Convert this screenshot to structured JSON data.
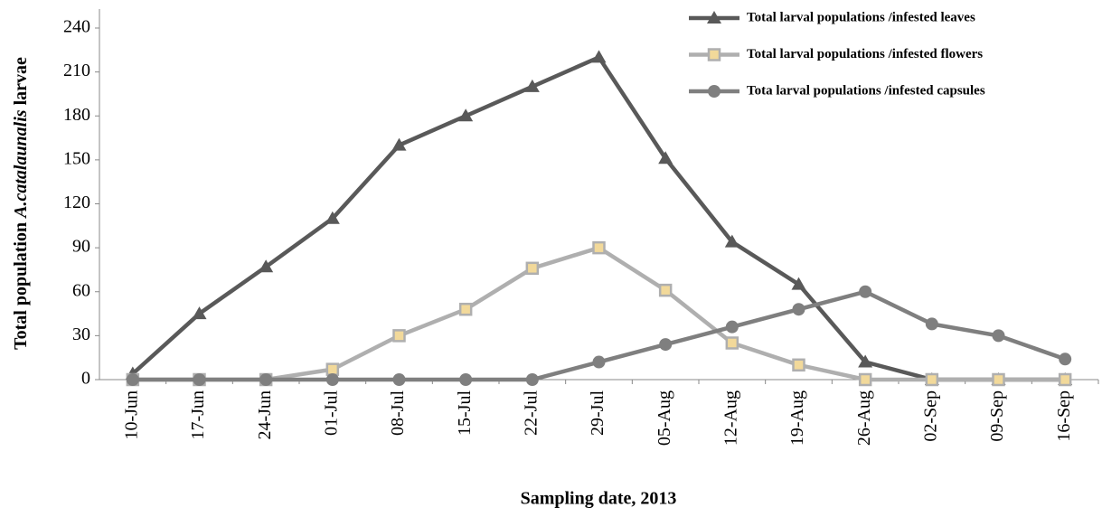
{
  "chart_data": {
    "type": "line",
    "xlabel": "Sampling date, 2013",
    "ylabel_parts": [
      "Total  population  ",
      "A.catalaunalis",
      " larvae"
    ],
    "categories": [
      "10-Jun",
      "17-Jun",
      "24-Jun",
      "01-Jul",
      "08-Jul",
      "15-Jul",
      "22-Jul",
      "29-Jul",
      "05-Aug",
      "12-Aug",
      "19-Aug",
      "26-Aug",
      "02-Sep",
      "09-Sep",
      "16-Sep"
    ],
    "series": [
      {
        "name": "Total larval populations /infested leaves",
        "color": "#595959",
        "marker": "triangle",
        "marker_fill": "#595959",
        "values": [
          4,
          45,
          77,
          110,
          160,
          180,
          200,
          220,
          151,
          94,
          65,
          12,
          0,
          0,
          0
        ]
      },
      {
        "name": "Total larval populations /infested flowers",
        "color": "#afafaf",
        "marker": "square",
        "marker_fill": "#f2d99a",
        "values": [
          0,
          0,
          0,
          7,
          30,
          48,
          76,
          90,
          61,
          25,
          10,
          0,
          0,
          0,
          0
        ]
      },
      {
        "name": "Tota larval populations /infested capsules",
        "color": "#7f7f7f",
        "marker": "circle",
        "marker_fill": "#7f7f7f",
        "values": [
          0,
          0,
          0,
          0,
          0,
          0,
          0,
          12,
          24,
          36,
          48,
          60,
          38,
          30,
          14
        ]
      }
    ],
    "ylim": [
      0,
      240
    ],
    "yticks": [
      0,
      30,
      60,
      90,
      120,
      150,
      180,
      210,
      240
    ],
    "grid": false,
    "legend": "upper right"
  }
}
